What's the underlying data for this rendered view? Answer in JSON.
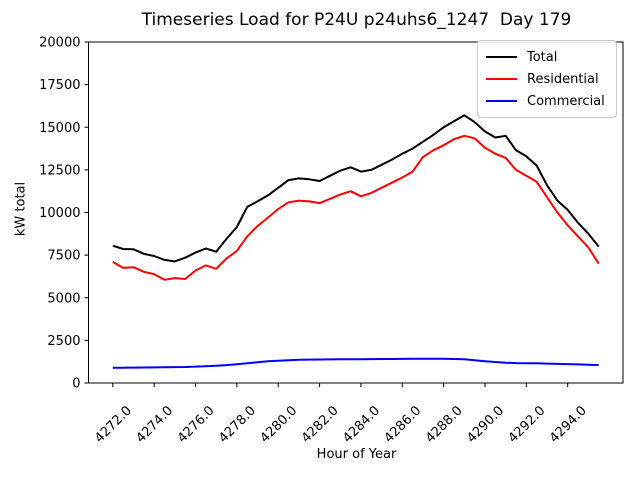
{
  "chart_data": {
    "type": "line",
    "title": "Timeseries Load for P24U p24uhs6_1247  Day 179",
    "xlabel": "Hour of Year",
    "ylabel": "kW total",
    "grid": false,
    "legend_position": "upper right",
    "xlim": [
      4270.825,
      4296.675
    ],
    "ylim": [
      0,
      20000
    ],
    "yticks": [
      0,
      2500,
      5000,
      7500,
      10000,
      12500,
      15000,
      17500,
      20000
    ],
    "ytick_labels": [
      "0",
      "2500",
      "5000",
      "7500",
      "10000",
      "12500",
      "15000",
      "17500",
      "20000"
    ],
    "xticks": [
      4272,
      4274,
      4276,
      4278,
      4280,
      4282,
      4284,
      4286,
      4288,
      4290,
      4292,
      4294
    ],
    "xtick_labels": [
      "4272.0",
      "4274.0",
      "4276.0",
      "4278.0",
      "4280.0",
      "4282.0",
      "4284.0",
      "4286.0",
      "4288.0",
      "4290.0",
      "4292.0",
      "4294.0"
    ],
    "x": [
      4272.0,
      4272.5,
      4273.0,
      4273.5,
      4274.0,
      4274.5,
      4275.0,
      4275.5,
      4276.0,
      4276.5,
      4277.0,
      4277.5,
      4278.0,
      4278.5,
      4279.0,
      4279.5,
      4280.0,
      4280.5,
      4281.0,
      4281.5,
      4282.0,
      4282.5,
      4283.0,
      4283.5,
      4284.0,
      4284.5,
      4285.0,
      4285.5,
      4286.0,
      4286.5,
      4287.0,
      4287.5,
      4288.0,
      4288.5,
      4289.0,
      4289.5,
      4290.0,
      4290.5,
      4291.0,
      4291.5,
      4292.0,
      4292.5,
      4293.0,
      4293.5,
      4294.0,
      4294.5,
      4295.0,
      4295.5
    ],
    "series": [
      {
        "name": "Total",
        "color": "#000000",
        "values": [
          8050,
          7860,
          7840,
          7580,
          7450,
          7220,
          7130,
          7350,
          7650,
          7890,
          7700,
          8450,
          9150,
          10330,
          10650,
          11000,
          11450,
          11900,
          12000,
          11950,
          11850,
          12150,
          12450,
          12650,
          12400,
          12500,
          12800,
          13100,
          13450,
          13750,
          14150,
          14550,
          15000,
          15350,
          15700,
          15300,
          14750,
          14400,
          14500,
          13650,
          13300,
          12750,
          11600,
          10700,
          10150,
          9400,
          8750,
          8000
        ]
      },
      {
        "name": "Residential",
        "color": "#ff0000",
        "values": [
          7100,
          6750,
          6790,
          6520,
          6390,
          6050,
          6150,
          6100,
          6600,
          6900,
          6700,
          7300,
          7750,
          8600,
          9200,
          9700,
          10200,
          10600,
          10700,
          10650,
          10550,
          10800,
          11050,
          11250,
          10950,
          11150,
          11450,
          11750,
          12050,
          12400,
          13250,
          13650,
          13950,
          14300,
          14500,
          14350,
          13800,
          13450,
          13200,
          12500,
          12150,
          11800,
          10900,
          10000,
          9250,
          8600,
          7950,
          7000
        ]
      },
      {
        "name": "Commercial",
        "color": "#0000ff",
        "values": [
          900,
          900,
          905,
          910,
          915,
          920,
          930,
          940,
          960,
          985,
          1010,
          1050,
          1100,
          1160,
          1220,
          1270,
          1310,
          1340,
          1360,
          1370,
          1380,
          1385,
          1390,
          1390,
          1395,
          1400,
          1405,
          1410,
          1415,
          1420,
          1425,
          1425,
          1420,
          1410,
          1390,
          1340,
          1280,
          1230,
          1190,
          1170,
          1160,
          1155,
          1140,
          1120,
          1110,
          1090,
          1070,
          1050
        ]
      }
    ]
  }
}
